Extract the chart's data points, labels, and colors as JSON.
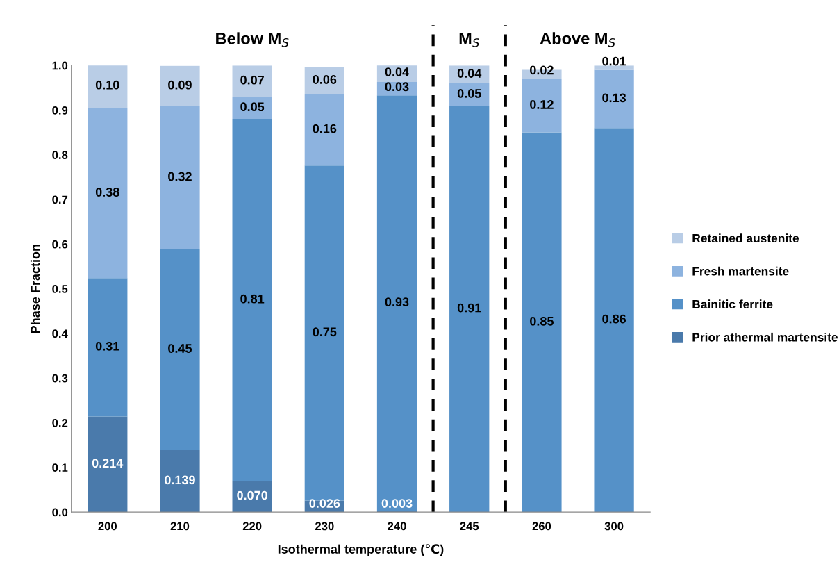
{
  "chart_data": {
    "type": "bar",
    "stacked": true,
    "xlabel": "Isothermal temperature (℃)",
    "ylabel": "Phase Fraction",
    "categories": [
      "200",
      "210",
      "220",
      "230",
      "240",
      "245",
      "260",
      "300"
    ],
    "series": [
      {
        "name": "Prior athermal martensite",
        "color": "#4a7aab",
        "values": [
          0.214,
          0.139,
          0.07,
          0.026,
          0.003,
          null,
          null,
          null
        ],
        "value_labels": [
          "0.214",
          "0.139",
          "0.070",
          "0.026",
          "0.003",
          null,
          null,
          null
        ]
      },
      {
        "name": "Bainitic ferrite",
        "color": "#5591c8",
        "values": [
          0.31,
          0.45,
          0.81,
          0.75,
          0.93,
          0.91,
          0.85,
          0.86
        ],
        "value_labels": [
          "0.31",
          "0.45",
          "0.81",
          "0.75",
          "0.93",
          "0.91",
          "0.85",
          "0.86"
        ]
      },
      {
        "name": "Fresh martensite",
        "color": "#8db3df",
        "values": [
          0.38,
          0.32,
          0.05,
          0.16,
          0.03,
          0.05,
          0.12,
          0.13
        ],
        "value_labels": [
          "0.38",
          "0.32",
          "0.05",
          "0.16",
          "0.03",
          "0.05",
          "0.12",
          "0.13"
        ]
      },
      {
        "name": "Retained austenite",
        "color": "#b9cde6",
        "values": [
          0.1,
          0.09,
          0.07,
          0.06,
          0.04,
          0.04,
          0.02,
          0.01
        ],
        "value_labels": [
          "0.10",
          "0.09",
          "0.07",
          "0.06",
          "0.04",
          "0.04",
          "0.02",
          "0.01"
        ]
      }
    ],
    "ylim": [
      0,
      1.0
    ],
    "yticks": [
      {
        "value": 0,
        "label": "0.0"
      },
      {
        "value": 0.1,
        "label": "0.1"
      },
      {
        "value": 0.2,
        "label": "0.2"
      },
      {
        "value": 0.3,
        "label": "0.3"
      },
      {
        "value": 0.4,
        "label": "0.4"
      },
      {
        "value": 0.5,
        "label": "0.5"
      },
      {
        "value": 0.6,
        "label": "0.6"
      },
      {
        "value": 0.7,
        "label": "0.7"
      },
      {
        "value": 0.8,
        "label": "0.8"
      },
      {
        "value": 0.9,
        "label": "0.9"
      },
      {
        "value": 1.0,
        "label": "1.0"
      }
    ],
    "annotations": [
      "Below M$_{S}$",
      "M$_{S}$",
      "Above M$_{S}$"
    ],
    "grid": false,
    "legend": "right"
  }
}
